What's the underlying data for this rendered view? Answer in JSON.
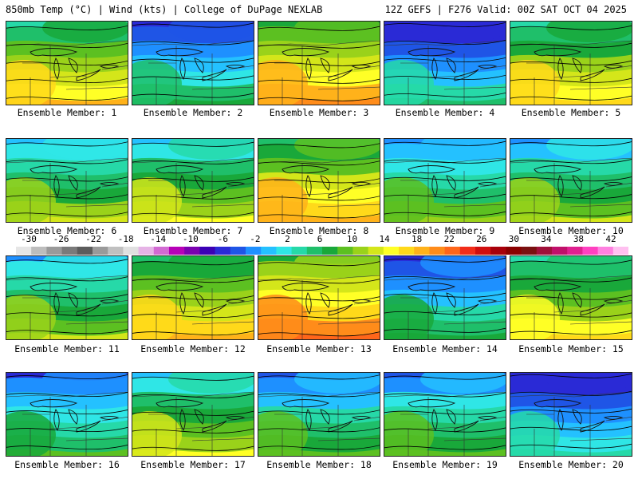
{
  "header": {
    "left": "850mb Temp (°C) | Wind (kts) | College of DuPage NEXLAB",
    "right": "12Z GEFS | F276 Valid: 00Z SAT OCT 04 2025"
  },
  "members": [
    {
      "label": "Ensemble Member: 1",
      "warmth": 0.62
    },
    {
      "label": "Ensemble Member: 2",
      "warmth": 0.28
    },
    {
      "label": "Ensemble Member: 3",
      "warmth": 0.7
    },
    {
      "label": "Ensemble Member: 4",
      "warmth": 0.22
    },
    {
      "label": "Ensemble Member: 5",
      "warmth": 0.6
    },
    {
      "label": "Ensemble Member: 6",
      "warmth": 0.46
    },
    {
      "label": "Ensemble Member: 7",
      "warmth": 0.5
    },
    {
      "label": "Ensemble Member: 8",
      "warmth": 0.66
    },
    {
      "label": "Ensemble Member: 9",
      "warmth": 0.4
    },
    {
      "label": "Ensemble Member: 10",
      "warmth": 0.44
    },
    {
      "label": "Ensemble Member: 11",
      "warmth": 0.45
    },
    {
      "label": "Ensemble Member: 12",
      "warmth": 0.64
    },
    {
      "label": "Ensemble Member: 13",
      "warmth": 0.75
    },
    {
      "label": "Ensemble Member: 14",
      "warmth": 0.3
    },
    {
      "label": "Ensemble Member: 15",
      "warmth": 0.58
    },
    {
      "label": "Ensemble Member: 16",
      "warmth": 0.33
    },
    {
      "label": "Ensemble Member: 17",
      "warmth": 0.5
    },
    {
      "label": "Ensemble Member: 18",
      "warmth": 0.36
    },
    {
      "label": "Ensemble Member: 19",
      "warmth": 0.38
    },
    {
      "label": "Ensemble Member: 20",
      "warmth": 0.2
    }
  ],
  "scale": {
    "ticks": [
      "-30",
      "-26",
      "-22",
      "-18",
      "-14",
      "-10",
      "-6",
      "-2",
      "2",
      "6",
      "10",
      "14",
      "18",
      "22",
      "26",
      "30",
      "34",
      "38",
      "42"
    ],
    "colors": [
      "#e6e6e6",
      "#bdbdbd",
      "#9a9a9a",
      "#7a7a7a",
      "#5c5c5c",
      "#9a9a9a",
      "#c0c0c0",
      "#e0e0e0",
      "#e6b3e6",
      "#d26ad2",
      "#b700b7",
      "#7a00b0",
      "#3b00b5",
      "#2a2ad6",
      "#1f55e6",
      "#1e90ff",
      "#24c1ff",
      "#2fe6e6",
      "#26d9a8",
      "#1fbf6a",
      "#19a83a",
      "#5cc021",
      "#9ad21a",
      "#d4e61a",
      "#ffff26",
      "#ffd91a",
      "#ffb21a",
      "#ff8c1a",
      "#ff661a",
      "#f22d1a",
      "#d10f0f",
      "#a8000a",
      "#8a0000",
      "#7a1010",
      "#a0103a",
      "#c0106a",
      "#e02090",
      "#ff40c0",
      "#ff80e0",
      "#ffc0f0"
    ]
  }
}
